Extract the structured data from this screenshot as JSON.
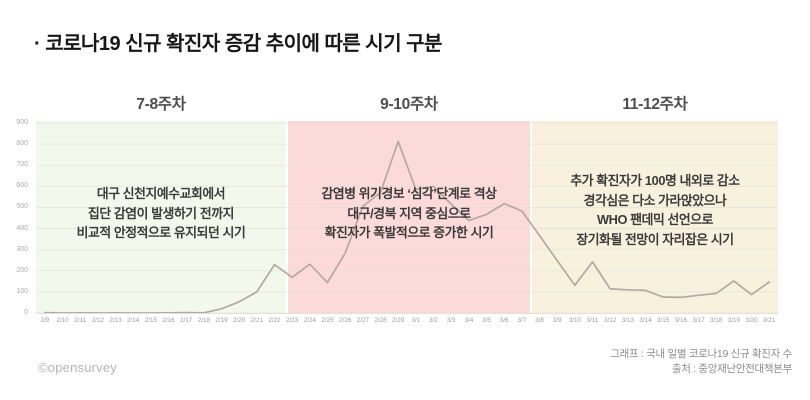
{
  "title": "· 코로나19 신규 확진자 증감 추이에 따른 시기 구분",
  "sections": [
    {
      "label": "7-8주차",
      "color": "#f2f8eb",
      "date_range": [
        "2/9",
        "2/22"
      ],
      "annotation": [
        "대구 신천지예수교회에서",
        "집단 감염이 발생하기 전까지",
        "비교적 안정적으로 유지되던 시기"
      ]
    },
    {
      "label": "9-10주차",
      "color": "#fcdada",
      "date_range": [
        "2/23",
        "3/7"
      ],
      "annotation": [
        "감염병 위기경보 ‘심각’단계로 격상",
        "대구/경북 지역 중심으로",
        "확진자가 폭발적으로 증가한 시기"
      ]
    },
    {
      "label": "11-12주차",
      "color": "#f8f1de",
      "date_range": [
        "3/8",
        "3/21"
      ],
      "annotation": [
        "추가 확진자가 100명 내외로 감소",
        "경각심은 다소 가라앉았으나",
        "WHO 팬데믹 선언으로",
        "장기화될 전망이 자리잡은 시기"
      ]
    }
  ],
  "chart_data": {
    "type": "line",
    "title": "국내 일별 코로나19 신규 확진자 수",
    "x": [
      "2/9",
      "2/10",
      "2/11",
      "2/12",
      "2/13",
      "2/14",
      "2/15",
      "2/16",
      "2/17",
      "2/18",
      "2/19",
      "2/20",
      "2/21",
      "2/22",
      "2/23",
      "2/24",
      "2/25",
      "2/26",
      "2/27",
      "2/28",
      "2/29",
      "3/1",
      "3/2",
      "3/3",
      "3/4",
      "3/5",
      "3/6",
      "3/7",
      "3/8",
      "3/9",
      "3/10",
      "3/11",
      "3/12",
      "3/13",
      "3/14",
      "3/15",
      "3/16",
      "3/17",
      "3/18",
      "3/19",
      "3/20",
      "3/21"
    ],
    "values": [
      2,
      0,
      1,
      0,
      1,
      0,
      0,
      1,
      2,
      1,
      20,
      53,
      100,
      229,
      169,
      231,
      144,
      284,
      505,
      571,
      813,
      586,
      599,
      516,
      438,
      467,
      518,
      483,
      367,
      248,
      131,
      242,
      114,
      110,
      107,
      76,
      74,
      84,
      93,
      152,
      87,
      147
    ],
    "ylim": [
      0,
      900
    ],
    "yticks": [
      0,
      100,
      200,
      300,
      400,
      500,
      600,
      700,
      800,
      900
    ],
    "grid": true,
    "legend": null,
    "line_color": "#b3a9a2",
    "grid_color": "#e0ded2"
  },
  "footer": {
    "credit": "©opensurvey",
    "graph_note": "그래프 : 국내 일별 코로나19 신규 확진자 수",
    "source_note": "출처 : 중앙재난안전대책본부"
  }
}
